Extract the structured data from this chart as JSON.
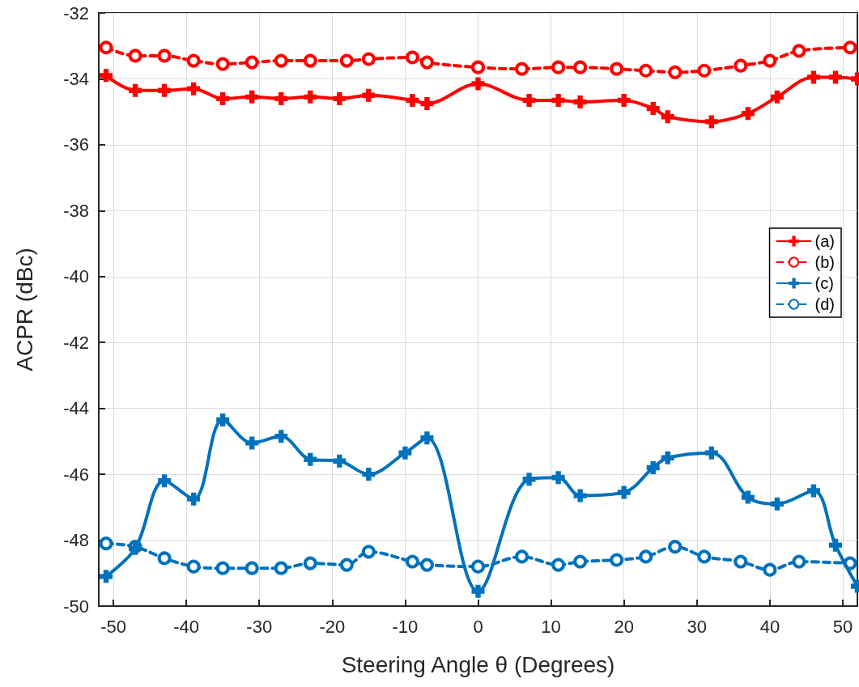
{
  "chart_data": {
    "type": "line",
    "xlabel": "Steering Angle θ (Degrees)",
    "ylabel": "ACPR (dBc)",
    "xlim": [
      -52,
      52
    ],
    "xticks": [
      -50,
      -40,
      -30,
      -20,
      -10,
      0,
      10,
      20,
      30,
      40,
      50
    ],
    "ylim": [
      -50,
      -32
    ],
    "yticks": [
      -50,
      -48,
      -46,
      -44,
      -42,
      -40,
      -38,
      -36,
      -34,
      -32
    ],
    "grid": true,
    "legend": "right",
    "series": [
      {
        "name": "(a)",
        "color": "#ff0000",
        "line_style": "solid",
        "marker": "cross",
        "x": [
          -51,
          -47,
          -43,
          -39,
          -35,
          -31,
          -27,
          -23,
          -19,
          -15,
          -9,
          -7,
          0,
          7,
          11,
          14,
          20,
          24,
          26,
          32,
          37,
          41,
          46,
          49,
          52
        ],
        "values": [
          -33.9,
          -34.35,
          -34.35,
          -34.3,
          -34.6,
          -34.55,
          -34.6,
          -34.55,
          -34.6,
          -34.5,
          -34.65,
          -34.75,
          -34.15,
          -34.65,
          -34.65,
          -34.7,
          -34.65,
          -34.9,
          -35.15,
          -35.3,
          -35.05,
          -34.55,
          -33.95,
          -33.95,
          -34.0
        ]
      },
      {
        "name": "(b)",
        "color": "#ff0000",
        "line_style": "dashed",
        "marker": "circle",
        "x": [
          -51,
          -47,
          -43,
          -39,
          -35,
          -31,
          -27,
          -23,
          -18,
          -15,
          -9,
          -7,
          0,
          6,
          11,
          14,
          19,
          23,
          27,
          31,
          36,
          40,
          44,
          51
        ],
        "values": [
          -33.05,
          -33.3,
          -33.3,
          -33.45,
          -33.55,
          -33.5,
          -33.45,
          -33.45,
          -33.45,
          -33.4,
          -33.35,
          -33.5,
          -33.65,
          -33.7,
          -33.65,
          -33.65,
          -33.7,
          -33.75,
          -33.8,
          -33.75,
          -33.6,
          -33.45,
          -33.15,
          -33.05
        ]
      },
      {
        "name": "(c)",
        "color": "#0072bd",
        "line_style": "solid",
        "marker": "cross",
        "x": [
          -51,
          -47,
          -43,
          -39,
          -35,
          -31,
          -27,
          -23,
          -19,
          -15,
          -10,
          -7,
          0,
          7,
          11,
          14,
          20,
          24,
          26,
          32,
          37,
          41,
          46,
          49,
          52
        ],
        "values": [
          -49.1,
          -48.25,
          -46.2,
          -46.75,
          -44.35,
          -45.05,
          -44.85,
          -45.55,
          -45.6,
          -46.0,
          -45.35,
          -44.9,
          -49.55,
          -46.15,
          -46.1,
          -46.65,
          -46.55,
          -45.8,
          -45.5,
          -45.35,
          -46.7,
          -46.9,
          -46.5,
          -48.15,
          -49.4
        ]
      },
      {
        "name": "(d)",
        "color": "#0072bd",
        "line_style": "dashed",
        "marker": "circle",
        "x": [
          -51,
          -47,
          -43,
          -39,
          -35,
          -31,
          -27,
          -23,
          -18,
          -15,
          -9,
          -7,
          0,
          6,
          11,
          14,
          19,
          23,
          27,
          31,
          36,
          40,
          44,
          51
        ],
        "values": [
          -48.1,
          -48.2,
          -48.55,
          -48.8,
          -48.85,
          -48.85,
          -48.85,
          -48.7,
          -48.75,
          -48.35,
          -48.65,
          -48.75,
          -48.8,
          -48.5,
          -48.75,
          -48.65,
          -48.6,
          -48.5,
          -48.2,
          -48.5,
          -48.65,
          -48.9,
          -48.65,
          -48.7
        ]
      }
    ]
  }
}
